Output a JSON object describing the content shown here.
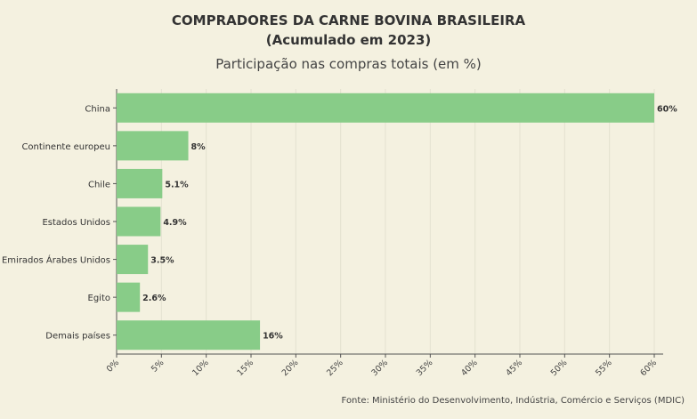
{
  "title_line1": "COMPRADORES DA CARNE BOVINA BRASILEIRA",
  "title_line2": "(Acumulado em 2023)",
  "subtitle": "Participação nas compras totais (em %)",
  "source": "Fonte: Ministério do Desenvolvimento, Indústria, Comércio e Serviços (MDIC)",
  "colors": {
    "bar": "#88cc88",
    "grid": "#e4e1d0",
    "axis": "#555555"
  },
  "chart_data": {
    "type": "bar",
    "orientation": "horizontal",
    "categories": [
      "China",
      "Continente europeu",
      "Chile",
      "Estados Unidos",
      "Emirados Árabes Unidos",
      "Egito",
      "Demais países"
    ],
    "values": [
      60,
      8,
      5.1,
      4.9,
      3.5,
      2.6,
      16
    ],
    "value_labels": [
      "60%",
      "8%",
      "5.1%",
      "4.9%",
      "3.5%",
      "2.6%",
      "16%"
    ],
    "xlim": [
      0,
      60
    ],
    "xticks": [
      0,
      5,
      10,
      15,
      20,
      25,
      30,
      35,
      40,
      45,
      50,
      55,
      60
    ],
    "xtick_labels": [
      "0%",
      "5%",
      "10%",
      "15%",
      "20%",
      "25%",
      "30%",
      "35%",
      "40%",
      "45%",
      "50%",
      "55%",
      "60%"
    ],
    "grid": true
  }
}
